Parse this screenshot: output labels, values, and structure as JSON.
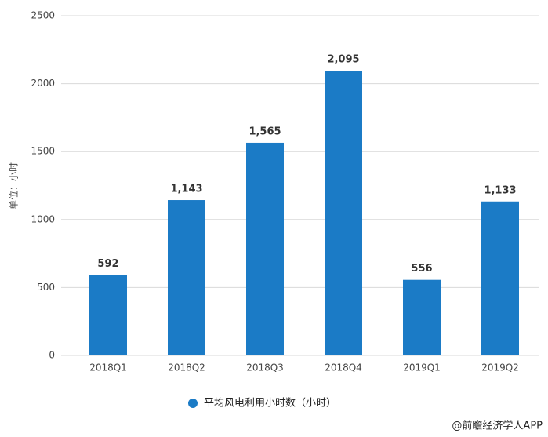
{
  "chart_data": {
    "type": "bar",
    "y_label": "单位：小时",
    "categories": [
      "2018Q1",
      "2018Q2",
      "2018Q3",
      "2018Q4",
      "2019Q1",
      "2019Q2"
    ],
    "series": [
      {
        "name": "平均风电利用小时数（小时）",
        "color": "#1b7bc6",
        "values": [
          592,
          1143,
          1565,
          2095,
          556,
          1133
        ],
        "value_labels": [
          "592",
          "1,143",
          "1,565",
          "2,095",
          "556",
          "1,133"
        ]
      }
    ],
    "ylim": [
      0,
      2500
    ],
    "yticks": [
      0,
      500,
      1000,
      1500,
      2000,
      2500
    ],
    "grid": true,
    "source": "@前瞻经济学人APP"
  }
}
